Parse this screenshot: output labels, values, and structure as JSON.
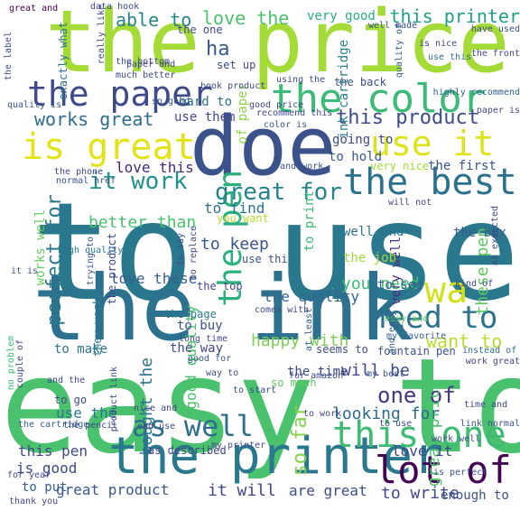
{
  "wordcloud": {
    "words": [
      {
        "text": "to use",
        "color": "#2a788e"
      },
      {
        "text": "easy to",
        "color": "#4ac16d"
      },
      {
        "text": "the ink",
        "color": "#2c718e"
      },
      {
        "text": "the price",
        "color": "#a5db36"
      },
      {
        "text": "doe",
        "color": "#3b528b"
      },
      {
        "text": "the printer",
        "color": "#2a788e"
      },
      {
        "text": "the paper",
        "color": "#3e4a89"
      },
      {
        "text": "the color",
        "color": "#3bbb75"
      },
      {
        "text": "the pen",
        "color": "#2cb17e"
      },
      {
        "text": "lot of",
        "color": "#440154"
      },
      {
        "text": "is great",
        "color": "#e3e418"
      },
      {
        "text": "use it",
        "color": "#dde318"
      },
      {
        "text": "the best",
        "color": "#2c728e"
      },
      {
        "text": "need to",
        "color": "#2c718e"
      },
      {
        "text": "this one",
        "color": "#3fbc73"
      },
      {
        "text": "wa",
        "color": "#d0e11c"
      },
      {
        "text": "as well",
        "color": "#2e6e8e"
      },
      {
        "text": "great for",
        "color": "#25838e"
      },
      {
        "text": "it work",
        "color": "#20928c"
      },
      {
        "text": "perfect for",
        "color": "#2a788e"
      },
      {
        "text": "this product",
        "color": "#3d4d8a"
      },
      {
        "text": "one of",
        "color": "#453781"
      },
      {
        "text": "want to",
        "color": "#b5de2b"
      },
      {
        "text": "so far",
        "color": "#84d44b"
      },
      {
        "text": "great price",
        "color": "#4ac16d"
      },
      {
        "text": "is good",
        "color": "#3f4889"
      },
      {
        "text": "it will",
        "color": "#404688"
      },
      {
        "text": "great product",
        "color": "#38588c"
      },
      {
        "text": "to write",
        "color": "#3e4989"
      },
      {
        "text": "able to",
        "color": "#25848e"
      },
      {
        "text": "love the",
        "color": "#4ac16d"
      },
      {
        "text": "this printer",
        "color": "#1f9e89"
      },
      {
        "text": "very good",
        "color": "#29af7f"
      },
      {
        "text": "works great",
        "color": "#2e6d8e"
      },
      {
        "text": "to keep",
        "color": "#39568c"
      },
      {
        "text": "you need",
        "color": "#3dbc74"
      },
      {
        "text": "the quality",
        "color": "#31678e"
      },
      {
        "text": "love these",
        "color": "#355f8d"
      },
      {
        "text": "good quality",
        "color": "#4ac16d"
      },
      {
        "text": "happy with",
        "color": "#7ad151"
      },
      {
        "text": "will be",
        "color": "#3f4788"
      },
      {
        "text": "looking for",
        "color": "#2f6b8e"
      },
      {
        "text": "these pen",
        "color": "#5cc863"
      },
      {
        "text": "love it",
        "color": "#3f4788"
      },
      {
        "text": "are great",
        "color": "#3e4c8a"
      },
      {
        "text": "enough to",
        "color": "#3b528b"
      },
      {
        "text": "this pen",
        "color": "#3f4889"
      },
      {
        "text": "to put",
        "color": "#34618d"
      },
      {
        "text": "bought the",
        "color": "#2c738e"
      },
      {
        "text": "love this",
        "color": "#482878"
      },
      {
        "text": "better than",
        "color": "#4ac16d"
      },
      {
        "text": "to hold",
        "color": "#39568c"
      },
      {
        "text": "to find",
        "color": "#2d708e"
      },
      {
        "text": "to buy",
        "color": "#3b528b"
      },
      {
        "text": "to make",
        "color": "#2a768e"
      },
      {
        "text": "to print",
        "color": "#3bbb75"
      },
      {
        "text": "to see",
        "color": "#34608d"
      },
      {
        "text": "going to",
        "color": "#3f4889"
      },
      {
        "text": "use the",
        "color": "#2a788e"
      },
      {
        "text": "use them",
        "color": "#3e4a89"
      },
      {
        "text": "works well",
        "color": "#67cc5c"
      },
      {
        "text": "ha",
        "color": "#38588c"
      },
      {
        "text": "very well",
        "color": "#46327e"
      },
      {
        "text": "the box",
        "color": "#35608d"
      },
      {
        "text": "the job",
        "color": "#a0da39"
      },
      {
        "text": "the first",
        "color": "#39558c"
      },
      {
        "text": "the back",
        "color": "#3d4e8a"
      },
      {
        "text": "the top",
        "color": "#3f4889"
      },
      {
        "text": "the page",
        "color": "#2a788e"
      },
      {
        "text": "the way",
        "color": "#3e4a89"
      },
      {
        "text": "the time",
        "color": "#3f4889"
      },
      {
        "text": "you want",
        "color": "#b2dd2d"
      },
      {
        "text": "hard to",
        "color": "#2d708e"
      },
      {
        "text": "set up",
        "color": "#3e4a89"
      },
      {
        "text": "well and",
        "color": "#2c728e"
      },
      {
        "text": "very nice",
        "color": "#a5db36"
      },
      {
        "text": "seems to",
        "color": "#3e4c8a"
      },
      {
        "text": "my favorite",
        "color": "#34618d"
      },
      {
        "text": "fountain pen",
        "color": "#3b528b"
      },
      {
        "text": "so much",
        "color": "#5ec962"
      },
      {
        "text": "to go",
        "color": "#3e4a89"
      },
      {
        "text": "as described",
        "color": "#404688"
      },
      {
        "text": "of paper",
        "color": "#8bd646"
      },
      {
        "text": "great and",
        "color": "#440154"
      },
      {
        "text": "easy and",
        "color": "#5ec962"
      },
      {
        "text": "the one",
        "color": "#3e4a89"
      },
      {
        "text": "ink cartridge",
        "color": "#277f8e"
      },
      {
        "text": "highly recommend",
        "color": "#34618d"
      },
      {
        "text": "use this",
        "color": "#2e6e8e"
      },
      {
        "text": "the front",
        "color": "#3f4889"
      },
      {
        "text": "the bottom",
        "color": "#3e4a89"
      },
      {
        "text": "use thi",
        "color": "#3d4e8a"
      },
      {
        "text": "good for",
        "color": "#38588c"
      },
      {
        "text": "the label",
        "color": "#3e4a89"
      },
      {
        "text": "the cartridge",
        "color": "#34618d"
      },
      {
        "text": "no problem",
        "color": "#3bbb75"
      },
      {
        "text": "quality is",
        "color": "#39568c"
      },
      {
        "text": "exactly what",
        "color": "#2d708e"
      },
      {
        "text": "they work",
        "color": "#2a788e"
      },
      {
        "text": "really like",
        "color": "#3e4a89"
      },
      {
        "text": "will not",
        "color": "#3f4889"
      },
      {
        "text": "is nice",
        "color": "#3e4c8a"
      },
      {
        "text": "quality of",
        "color": "#34618d"
      },
      {
        "text": "it is",
        "color": "#3b528b"
      },
      {
        "text": "paper is",
        "color": "#3f4889"
      },
      {
        "text": "so good",
        "color": "#39568c"
      },
      {
        "text": "at least",
        "color": "#34608d"
      },
      {
        "text": "the product",
        "color": "#3e4a89"
      },
      {
        "text": "high quality",
        "color": "#2a788e"
      },
      {
        "text": "trying to",
        "color": "#39568c"
      },
      {
        "text": "long time",
        "color": "#3f4889"
      },
      {
        "text": "comes with",
        "color": "#3e4a89"
      },
      {
        "text": "and work",
        "color": "#3b528b"
      },
      {
        "text": "and easy",
        "color": "#34618d"
      },
      {
        "text": "and the",
        "color": "#3e4a89"
      },
      {
        "text": "instead of",
        "color": "#2e6e8e"
      },
      {
        "text": "work great",
        "color": "#3f4889"
      },
      {
        "text": "time and",
        "color": "#3e4a89"
      },
      {
        "text": "link normal",
        "color": "#3b528b"
      },
      {
        "text": "work well",
        "color": "#3e4c8a"
      },
      {
        "text": "for amazon",
        "color": "#3e4a89"
      },
      {
        "text": "my best",
        "color": "#39568c"
      },
      {
        "text": "way to",
        "color": "#3e4a89"
      },
      {
        "text": "the pencil",
        "color": "#3f4889"
      },
      {
        "text": "data hook",
        "color": "#3e4a89"
      },
      {
        "text": "well made",
        "color": "#3b528b"
      },
      {
        "text": "have used",
        "color": "#3e4a89"
      },
      {
        "text": "recommend this",
        "color": "#3f4889"
      },
      {
        "text": "good price",
        "color": "#3e4a89"
      },
      {
        "text": "color is",
        "color": "#39568c"
      },
      {
        "text": "much better",
        "color": "#3e4a89"
      },
      {
        "text": "nice and",
        "color": "#3f4889"
      },
      {
        "text": "the phone",
        "color": "#3e4a89"
      },
      {
        "text": "normal href",
        "color": "#3b528b"
      },
      {
        "text": "couple of",
        "color": "#3e4a89"
      },
      {
        "text": "for year",
        "color": "#3f4889"
      },
      {
        "text": "thank you",
        "color": "#3e4a89"
      },
      {
        "text": "is perfect",
        "color": "#3b528b"
      },
      {
        "text": "product link",
        "color": "#3e4a89"
      },
      {
        "text": "book product",
        "color": "#3f4889"
      },
      {
        "text": "to replace",
        "color": "#3e4a89"
      },
      {
        "text": "to say",
        "color": "#3e4a89"
      },
      {
        "text": "as expected",
        "color": "#3f4889"
      },
      {
        "text": "kind of",
        "color": "#3e4a89"
      },
      {
        "text": "to start",
        "color": "#3e4a89"
      },
      {
        "text": "to work",
        "color": "#3f4889"
      },
      {
        "text": "end use",
        "color": "#3e4a89"
      },
      {
        "text": "my printer",
        "color": "#3e4a89"
      },
      {
        "text": "paper and",
        "color": "#3f4889"
      },
      {
        "text": "using the",
        "color": "#3e4a89"
      },
      {
        "text": "to use",
        "color": "#3e4a89"
      }
    ]
  }
}
